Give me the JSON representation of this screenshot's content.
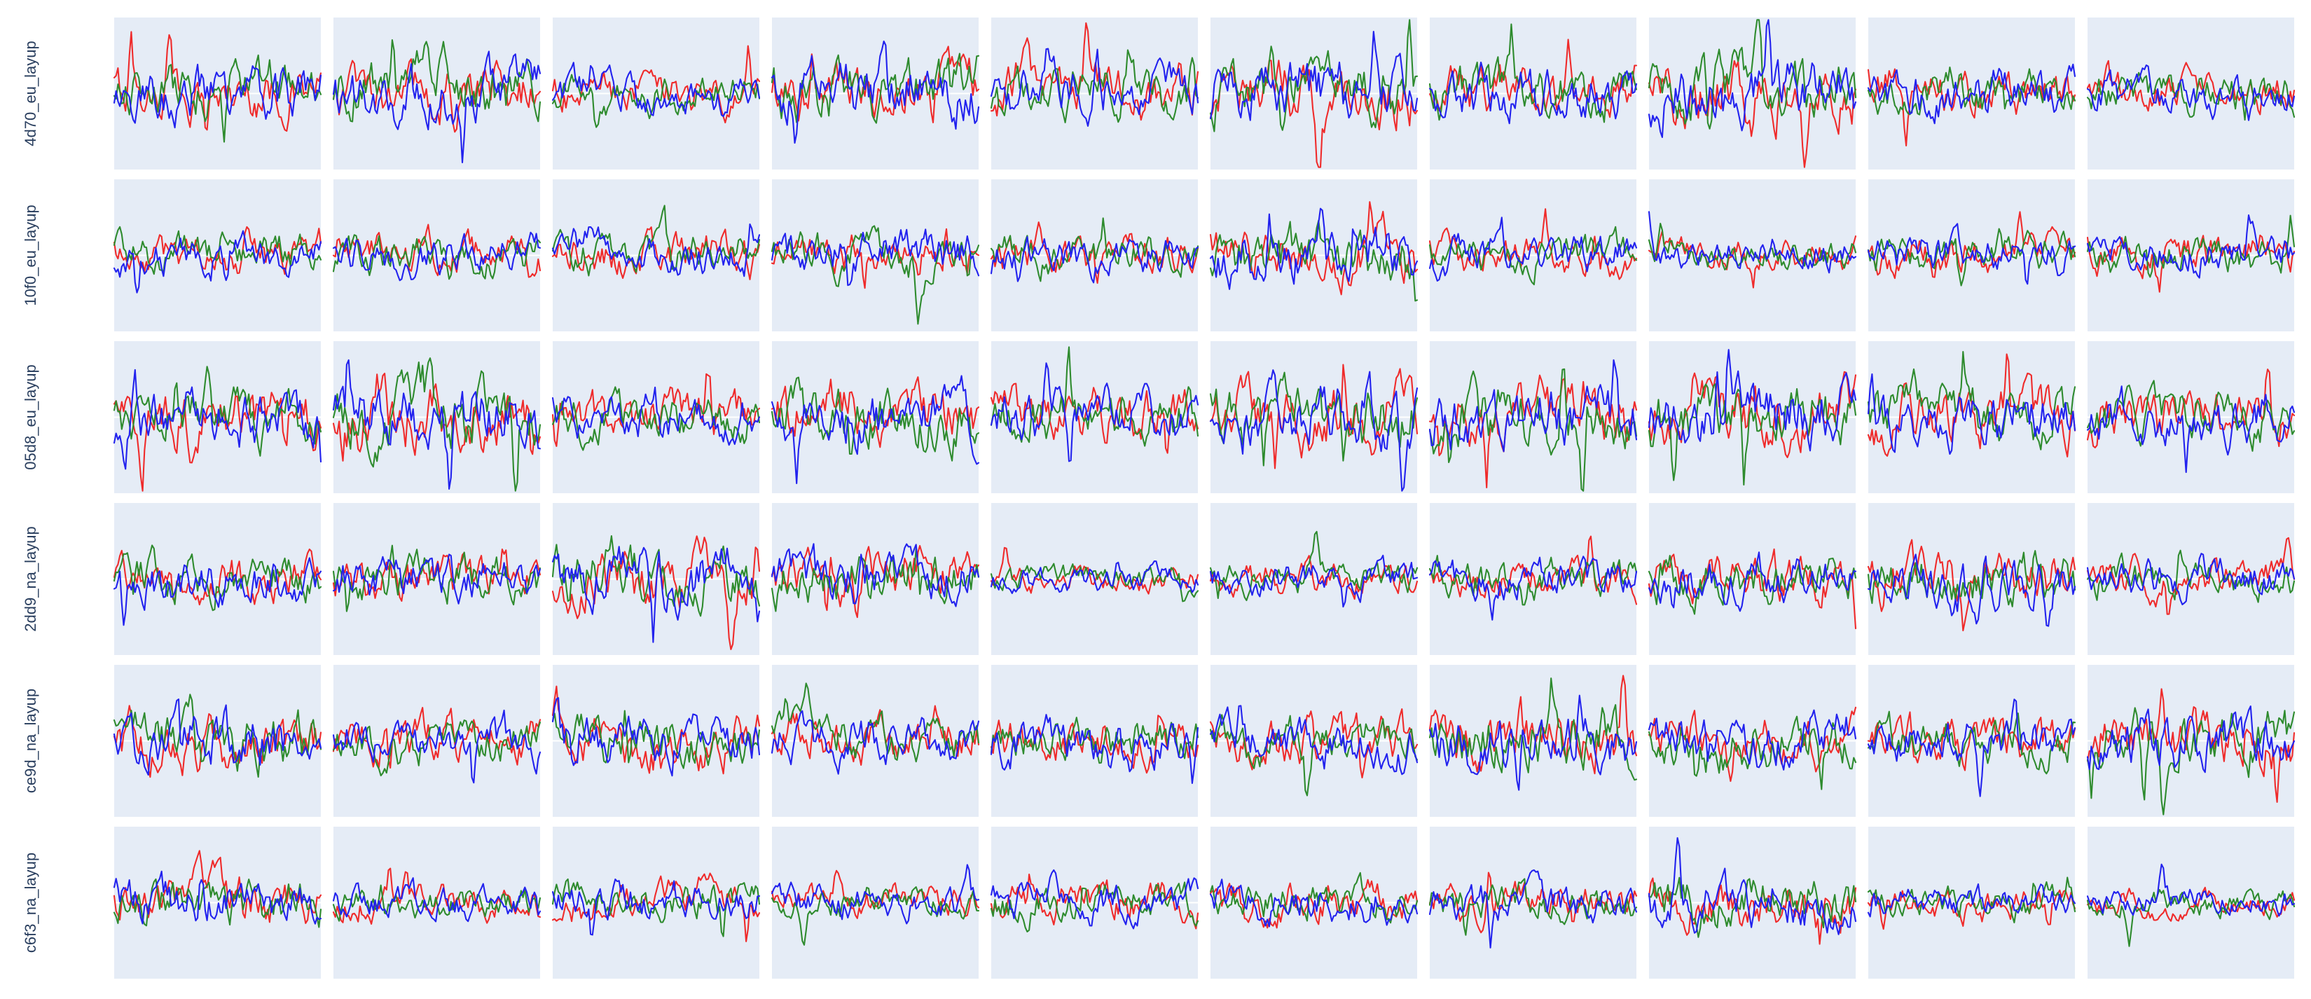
{
  "chart_data": {
    "type": "line",
    "layout": "small-multiples grid",
    "rows": 6,
    "columns": 10,
    "row_labels": [
      "4d70_eu_layup",
      "10f0_eu_layup",
      "05d8_eu_layup",
      "2dd9_na_layup",
      "ce9d_na_layup",
      "c6f3_na_layup"
    ],
    "series": [
      {
        "name": "",
        "color": "#ef2b2b"
      },
      {
        "name": "",
        "color": "#2e8b2e"
      },
      {
        "name": "",
        "color": "#2222ee"
      }
    ],
    "x_range": [
      0,
      100
    ],
    "y_range": [
      -1,
      1
    ],
    "x_ticks_visible": false,
    "y_ticks_visible": false,
    "grid": "zero line only",
    "background_color": "#e5ecf6",
    "panel_activity": [
      [
        0.8,
        0.9,
        0.6,
        0.9,
        0.8,
        1.0,
        0.8,
        1.0,
        0.7,
        0.6
      ],
      [
        0.6,
        0.6,
        0.6,
        0.7,
        0.6,
        0.9,
        0.6,
        0.5,
        0.6,
        0.6
      ],
      [
        0.9,
        1.0,
        0.7,
        0.9,
        0.8,
        1.0,
        1.0,
        1.0,
        0.9,
        0.8
      ],
      [
        0.7,
        0.7,
        0.9,
        0.8,
        0.4,
        0.5,
        0.6,
        0.7,
        0.8,
        0.6
      ],
      [
        0.9,
        0.7,
        0.8,
        0.7,
        0.7,
        0.7,
        0.9,
        0.8,
        0.7,
        0.9
      ],
      [
        0.7,
        0.5,
        0.6,
        0.5,
        0.6,
        0.6,
        0.6,
        0.8,
        0.5,
        0.4
      ]
    ],
    "notes": "Each panel shows three overlaid traces (red, green, blue). Trace values are approximated as noisy signals within y_range; exact point values are not legible in the image."
  }
}
